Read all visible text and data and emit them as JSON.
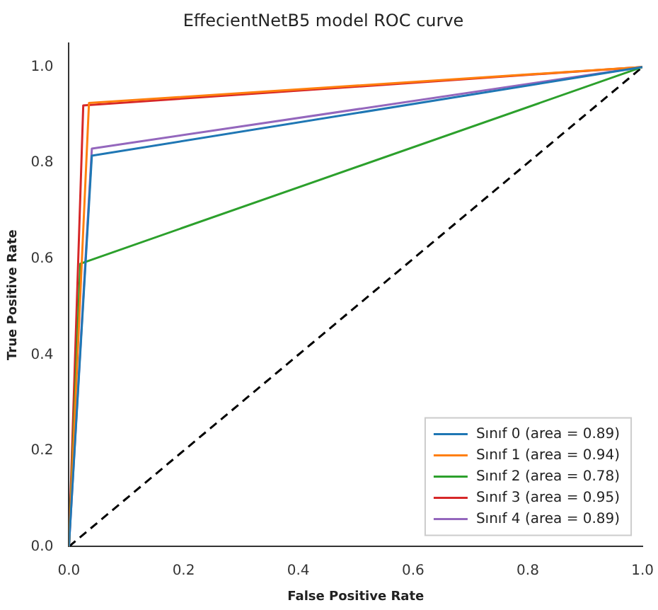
{
  "chart_data": {
    "type": "line",
    "title": "EffecientNetB5 model ROC curve",
    "xlabel": "False Positive Rate",
    "ylabel": "True Positive Rate",
    "xlim": [
      0,
      1
    ],
    "ylim": [
      0,
      1.05
    ],
    "xticks": [
      {
        "value": 0,
        "label": "0.0"
      },
      0.2,
      0.4,
      0.6,
      0.8,
      {
        "value": 1,
        "label": "1.0"
      }
    ],
    "yticks": [
      {
        "value": 0,
        "label": "0.0"
      },
      0.2,
      0.4,
      0.6,
      0.8,
      {
        "value": 1,
        "label": "1.0"
      }
    ],
    "grid": false,
    "legend": "bottom right",
    "marker": "none",
    "series": [
      {
        "name": "Sınıf 0 (area = 0.89)",
        "color": "#1f77b4",
        "x": [
          0,
          0.04,
          1
        ],
        "values": [
          0,
          0.815,
          1
        ]
      },
      {
        "name": "Sınıf 1 (area = 0.94)",
        "color": "#ff7f0e",
        "x": [
          0,
          0.035,
          1
        ],
        "values": [
          0,
          0.925,
          1
        ]
      },
      {
        "name": "Sınıf 2 (area = 0.78)",
        "color": "#2ca02c",
        "x": [
          0,
          0.02,
          1
        ],
        "values": [
          0,
          0.59,
          1
        ]
      },
      {
        "name": "Sınıf 3 (area = 0.95)",
        "color": "#d62728",
        "x": [
          0,
          0.025,
          1
        ],
        "values": [
          0,
          0.92,
          1
        ]
      },
      {
        "name": "Sınıf 4 (area = 0.89)",
        "color": "#9467bd",
        "x": [
          0,
          0.04,
          1
        ],
        "values": [
          0,
          0.83,
          1
        ]
      },
      {
        "color": "#000000",
        "line_style": "dashed",
        "x": [
          0,
          1
        ],
        "values": [
          0,
          1
        ]
      }
    ]
  }
}
